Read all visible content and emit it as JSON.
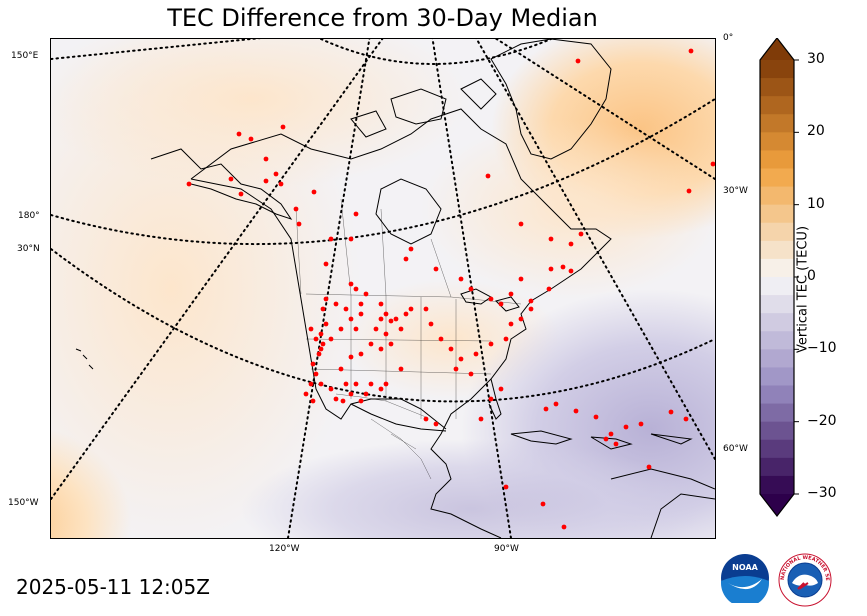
{
  "title": "TEC Difference from 30-Day Median",
  "timestamp": "2025-05-11 12:05Z",
  "colorbar": {
    "label": "Vertical TEC (TECU)",
    "min": -30,
    "max": 30,
    "ticks": [
      "30",
      "20",
      "10",
      "0",
      "−10",
      "−20",
      "−30"
    ],
    "colors": {
      "positive_max": "#7f3b08",
      "positive_mid": "#f1a340",
      "neutral": "#f7f7f7",
      "negative_mid": "#998ec3",
      "negative_max": "#2d004b"
    }
  },
  "grid_labels": {
    "left": [
      "150°E",
      "180°",
      "30°N",
      "150°W"
    ],
    "right": [
      "0°",
      "30°W",
      "60°W"
    ],
    "bottom": [
      "120°W",
      "90°W"
    ]
  },
  "map": {
    "projection": "polar-stereographic",
    "gridlines": "dotted",
    "station_marker_color": "#ff0000",
    "coastline_color": "#000000"
  },
  "logos": {
    "noaa": "NOAA",
    "nws": "NATIONAL WEATHER SERVICE"
  }
}
